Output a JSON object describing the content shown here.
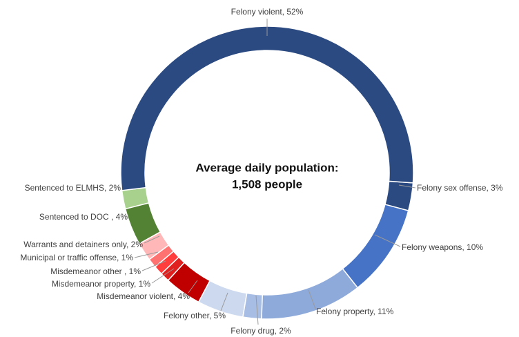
{
  "chart_data": {
    "type": "donut",
    "annotations": [
      "Average daily population:",
      "1,508 people"
    ],
    "labels": [
      "Felony violent, 52%",
      "Felony sex offense, 3%",
      "Felony weapons, 10%",
      "Felony property, 11%",
      "Felony drug, 2%",
      "Felony other, 5%",
      "Misdemeanor violent, 4%",
      "Misdemeanor property, 1%",
      "Misdemeanor other , 1%",
      "Municipal or traffic offense, 1%",
      "Warrants and detainers only, 2%",
      "Sentenced to DOC , 4%",
      "Sentenced to ELMHS, 2%"
    ],
    "values": [
      52,
      3,
      10,
      11,
      2,
      5,
      4,
      1,
      1,
      1,
      2,
      4,
      2
    ],
    "colors": [
      "#2b4a82",
      "#2b4a82",
      "#4673c6",
      "#8eaadb",
      "#a8bde3",
      "#cdd9ef",
      "#c00000",
      "#e01f1f",
      "#ff3d3d",
      "#ff7272",
      "#ffb7b7",
      "#548235",
      "#a9d18e"
    ]
  }
}
